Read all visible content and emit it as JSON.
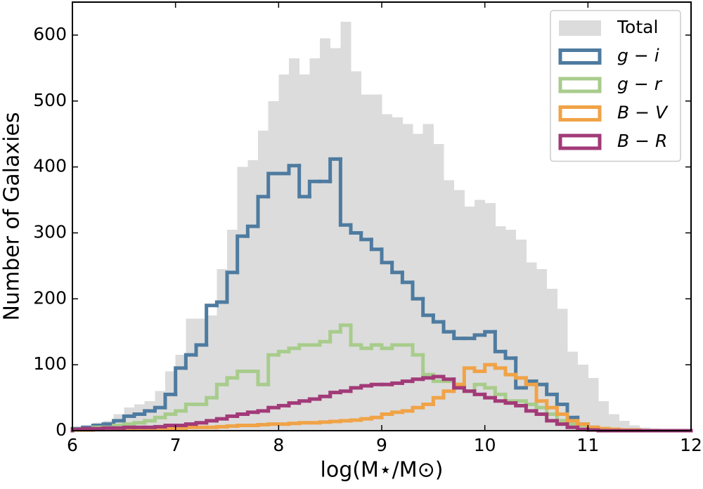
{
  "chart_data": {
    "type": "histogram",
    "xlabel": "log(M⋆/M⊙)",
    "ylabel": "Number of Galaxies",
    "bins": [
      6.0,
      6.1,
      6.2,
      6.3,
      6.4,
      6.5,
      6.6,
      6.7,
      6.8,
      6.9,
      7.0,
      7.1,
      7.2,
      7.3,
      7.4,
      7.5,
      7.6,
      7.7,
      7.8,
      7.9,
      8.0,
      8.1,
      8.2,
      8.3,
      8.4,
      8.5,
      8.6,
      8.7,
      8.8,
      8.9,
      9.0,
      9.1,
      9.2,
      9.3,
      9.4,
      9.5,
      9.6,
      9.7,
      9.8,
      9.9,
      10.0,
      10.1,
      10.2,
      10.3,
      10.4,
      10.5,
      10.6,
      10.7,
      10.8,
      10.9,
      11.0,
      11.1,
      11.2,
      11.3,
      11.4,
      11.5,
      11.6,
      11.7,
      11.8,
      11.9,
      12.0
    ],
    "series": [
      {
        "name": "Total",
        "color": "#dcdcdc",
        "histtype": "stepfilled",
        "values": [
          5,
          8,
          12,
          15,
          25,
          35,
          40,
          45,
          60,
          90,
          115,
          170,
          170,
          175,
          245,
          305,
          400,
          410,
          455,
          500,
          540,
          565,
          540,
          565,
          595,
          580,
          620,
          545,
          510,
          510,
          480,
          475,
          465,
          450,
          465,
          435,
          380,
          365,
          340,
          350,
          345,
          310,
          305,
          290,
          255,
          245,
          215,
          185,
          120,
          100,
          80,
          45,
          25,
          15,
          8,
          5,
          3,
          2,
          1,
          1
        ]
      },
      {
        "name": "g − i",
        "color": "#4e7ba0",
        "histtype": "step",
        "values": [
          3,
          5,
          8,
          10,
          15,
          22,
          25,
          30,
          35,
          55,
          95,
          115,
          130,
          190,
          195,
          240,
          295,
          310,
          355,
          390,
          390,
          402,
          355,
          378,
          378,
          412,
          312,
          300,
          290,
          275,
          255,
          240,
          225,
          200,
          175,
          165,
          150,
          140,
          140,
          145,
          150,
          120,
          110,
          65,
          75,
          70,
          55,
          40,
          20,
          10,
          5,
          2,
          1,
          0,
          0,
          0,
          0,
          0,
          0,
          0
        ]
      },
      {
        "name": "g − r",
        "color": "#a8cc8c",
        "histtype": "step",
        "values": [
          2,
          3,
          5,
          5,
          8,
          10,
          12,
          15,
          20,
          25,
          30,
          40,
          40,
          50,
          70,
          80,
          90,
          90,
          70,
          115,
          120,
          125,
          130,
          130,
          135,
          150,
          160,
          130,
          125,
          130,
          125,
          130,
          130,
          115,
          85,
          75,
          75,
          70,
          60,
          70,
          65,
          55,
          45,
          45,
          40,
          35,
          25,
          15,
          10,
          8,
          5,
          3,
          2,
          0,
          0,
          0,
          0,
          0,
          0,
          0
        ]
      },
      {
        "name": "B − V",
        "color": "#f0a347",
        "histtype": "step",
        "values": [
          1,
          1,
          2,
          2,
          2,
          2,
          3,
          3,
          3,
          3,
          4,
          5,
          5,
          5,
          6,
          7,
          8,
          8,
          9,
          10,
          10,
          11,
          12,
          12,
          13,
          14,
          15,
          16,
          18,
          20,
          25,
          28,
          30,
          35,
          40,
          50,
          60,
          70,
          95,
          90,
          100,
          95,
          85,
          80,
          70,
          45,
          35,
          25,
          15,
          10,
          5,
          3,
          2,
          1,
          1,
          0,
          0,
          0,
          0,
          0
        ]
      },
      {
        "name": "B − R",
        "color": "#a23a78",
        "histtype": "step",
        "values": [
          2,
          3,
          3,
          4,
          4,
          5,
          5,
          5,
          6,
          8,
          8,
          10,
          12,
          15,
          18,
          22,
          25,
          28,
          30,
          35,
          38,
          42,
          45,
          48,
          52,
          58,
          60,
          65,
          68,
          70,
          70,
          72,
          75,
          78,
          80,
          82,
          78,
          65,
          60,
          55,
          50,
          45,
          42,
          38,
          30,
          25,
          15,
          10,
          5,
          2,
          1,
          0,
          0,
          0,
          0,
          0,
          0,
          0,
          0,
          0
        ]
      }
    ],
    "xlim": [
      6,
      12
    ],
    "xticks": [
      6,
      7,
      8,
      9,
      10,
      11,
      12
    ],
    "ylim": [
      0,
      650
    ],
    "yticks": [
      0,
      100,
      200,
      300,
      400,
      500,
      600
    ],
    "legend": "upper right"
  }
}
